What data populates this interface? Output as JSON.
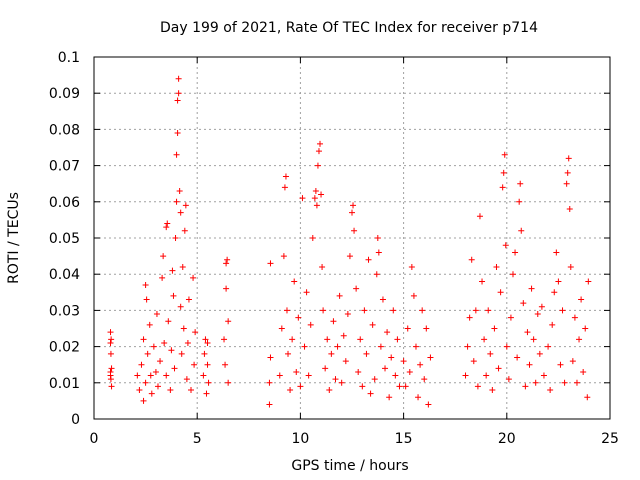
{
  "chart_data": {
    "type": "scatter",
    "title": "Day 199 of 2021, Rate Of TEC Index for receiver p714",
    "xlabel": "GPS time / hours",
    "ylabel": "ROTI / TECUs",
    "xlim": [
      0,
      25
    ],
    "ylim": [
      0,
      0.1
    ],
    "xticks": [
      0,
      5,
      10,
      15,
      20,
      25
    ],
    "xtick_labels": [
      "0",
      "5",
      "10",
      "15",
      "20",
      "25"
    ],
    "yticks": [
      0,
      0.01,
      0.02,
      0.03,
      0.04,
      0.05,
      0.06,
      0.07,
      0.08,
      0.09,
      0.1
    ],
    "ytick_labels": [
      "0",
      "0.01",
      "0.02",
      "0.03",
      "0.04",
      "0.05",
      "0.06",
      "0.07",
      "0.08",
      "0.09",
      "0.1"
    ],
    "grid": true,
    "marker": "+",
    "color": "#ff0000",
    "series": [
      {
        "points": [
          [
            0.8,
            0.012
          ],
          [
            0.8,
            0.013
          ],
          [
            0.82,
            0.011
          ],
          [
            0.85,
            0.014
          ],
          [
            0.8,
            0.021
          ],
          [
            0.83,
            0.022
          ],
          [
            0.8,
            0.024
          ],
          [
            0.85,
            0.009
          ],
          [
            0.82,
            0.018
          ],
          [
            2.1,
            0.012
          ],
          [
            2.2,
            0.008
          ],
          [
            2.3,
            0.015
          ],
          [
            2.4,
            0.005
          ],
          [
            2.4,
            0.022
          ],
          [
            2.5,
            0.01
          ],
          [
            2.5,
            0.037
          ],
          [
            2.55,
            0.033
          ],
          [
            2.6,
            0.018
          ],
          [
            2.7,
            0.026
          ],
          [
            2.75,
            0.012
          ],
          [
            2.8,
            0.007
          ],
          [
            2.9,
            0.02
          ],
          [
            3.0,
            0.013
          ],
          [
            3.05,
            0.029
          ],
          [
            3.1,
            0.009
          ],
          [
            3.2,
            0.016
          ],
          [
            3.3,
            0.039
          ],
          [
            3.35,
            0.045
          ],
          [
            3.4,
            0.021
          ],
          [
            3.5,
            0.012
          ],
          [
            3.5,
            0.053
          ],
          [
            3.55,
            0.054
          ],
          [
            3.6,
            0.027
          ],
          [
            3.7,
            0.008
          ],
          [
            3.75,
            0.019
          ],
          [
            3.8,
            0.041
          ],
          [
            3.85,
            0.034
          ],
          [
            3.9,
            0.014
          ],
          [
            3.95,
            0.05
          ],
          [
            4.0,
            0.06
          ],
          [
            4.0,
            0.073
          ],
          [
            4.05,
            0.079
          ],
          [
            4.05,
            0.088
          ],
          [
            4.1,
            0.09
          ],
          [
            4.1,
            0.094
          ],
          [
            4.15,
            0.063
          ],
          [
            4.2,
            0.057
          ],
          [
            4.2,
            0.031
          ],
          [
            4.25,
            0.018
          ],
          [
            4.3,
            0.042
          ],
          [
            4.35,
            0.025
          ],
          [
            4.4,
            0.052
          ],
          [
            4.45,
            0.059
          ],
          [
            4.5,
            0.011
          ],
          [
            4.55,
            0.021
          ],
          [
            4.6,
            0.033
          ],
          [
            4.7,
            0.008
          ],
          [
            4.8,
            0.039
          ],
          [
            4.85,
            0.015
          ],
          [
            4.9,
            0.024
          ],
          [
            5.3,
            0.012
          ],
          [
            5.35,
            0.018
          ],
          [
            5.4,
            0.022
          ],
          [
            5.45,
            0.007
          ],
          [
            5.5,
            0.015
          ],
          [
            5.5,
            0.021
          ],
          [
            5.55,
            0.01
          ],
          [
            6.3,
            0.022
          ],
          [
            6.35,
            0.015
          ],
          [
            6.4,
            0.043
          ],
          [
            6.45,
            0.044
          ],
          [
            6.4,
            0.036
          ],
          [
            6.5,
            0.01
          ],
          [
            6.5,
            0.027
          ],
          [
            8.5,
            0.004
          ],
          [
            8.5,
            0.01
          ],
          [
            8.55,
            0.017
          ],
          [
            8.55,
            0.043
          ],
          [
            9.0,
            0.012
          ],
          [
            9.1,
            0.025
          ],
          [
            9.2,
            0.045
          ],
          [
            9.25,
            0.064
          ],
          [
            9.3,
            0.067
          ],
          [
            9.35,
            0.03
          ],
          [
            9.4,
            0.018
          ],
          [
            9.5,
            0.008
          ],
          [
            9.6,
            0.022
          ],
          [
            9.7,
            0.038
          ],
          [
            9.8,
            0.013
          ],
          [
            9.9,
            0.028
          ],
          [
            10.0,
            0.009
          ],
          [
            10.1,
            0.061
          ],
          [
            10.2,
            0.02
          ],
          [
            10.3,
            0.035
          ],
          [
            10.4,
            0.012
          ],
          [
            10.5,
            0.026
          ],
          [
            10.6,
            0.05
          ],
          [
            10.7,
            0.061
          ],
          [
            10.75,
            0.063
          ],
          [
            10.8,
            0.059
          ],
          [
            10.85,
            0.07
          ],
          [
            10.9,
            0.074
          ],
          [
            10.95,
            0.076
          ],
          [
            11.0,
            0.062
          ],
          [
            11.05,
            0.042
          ],
          [
            11.1,
            0.03
          ],
          [
            11.2,
            0.014
          ],
          [
            11.3,
            0.022
          ],
          [
            11.4,
            0.008
          ],
          [
            11.5,
            0.018
          ],
          [
            11.6,
            0.027
          ],
          [
            11.7,
            0.011
          ],
          [
            11.8,
            0.02
          ],
          [
            11.9,
            0.034
          ],
          [
            12.0,
            0.01
          ],
          [
            12.1,
            0.023
          ],
          [
            12.2,
            0.016
          ],
          [
            12.3,
            0.029
          ],
          [
            12.4,
            0.045
          ],
          [
            12.5,
            0.057
          ],
          [
            12.55,
            0.059
          ],
          [
            12.6,
            0.052
          ],
          [
            12.7,
            0.036
          ],
          [
            12.8,
            0.013
          ],
          [
            12.9,
            0.022
          ],
          [
            13.0,
            0.009
          ],
          [
            13.1,
            0.03
          ],
          [
            13.2,
            0.018
          ],
          [
            13.3,
            0.044
          ],
          [
            13.4,
            0.007
          ],
          [
            13.5,
            0.026
          ],
          [
            13.6,
            0.011
          ],
          [
            13.7,
            0.04
          ],
          [
            13.75,
            0.05
          ],
          [
            13.8,
            0.046
          ],
          [
            13.9,
            0.02
          ],
          [
            14.0,
            0.033
          ],
          [
            14.1,
            0.014
          ],
          [
            14.2,
            0.024
          ],
          [
            14.3,
            0.006
          ],
          [
            14.4,
            0.017
          ],
          [
            14.5,
            0.03
          ],
          [
            14.6,
            0.012
          ],
          [
            14.7,
            0.022
          ],
          [
            14.8,
            0.009
          ],
          [
            15.0,
            0.016
          ],
          [
            15.1,
            0.009
          ],
          [
            15.2,
            0.025
          ],
          [
            15.3,
            0.013
          ],
          [
            15.4,
            0.042
          ],
          [
            15.5,
            0.034
          ],
          [
            15.6,
            0.02
          ],
          [
            15.7,
            0.006
          ],
          [
            15.8,
            0.015
          ],
          [
            15.9,
            0.03
          ],
          [
            16.0,
            0.011
          ],
          [
            16.1,
            0.025
          ],
          [
            16.2,
            0.004
          ],
          [
            16.3,
            0.017
          ],
          [
            18.0,
            0.012
          ],
          [
            18.1,
            0.02
          ],
          [
            18.2,
            0.028
          ],
          [
            18.3,
            0.044
          ],
          [
            18.4,
            0.016
          ],
          [
            18.5,
            0.03
          ],
          [
            18.6,
            0.009
          ],
          [
            18.7,
            0.056
          ],
          [
            18.8,
            0.038
          ],
          [
            18.9,
            0.022
          ],
          [
            19.0,
            0.012
          ],
          [
            19.1,
            0.03
          ],
          [
            19.2,
            0.018
          ],
          [
            19.3,
            0.008
          ],
          [
            19.4,
            0.025
          ],
          [
            19.5,
            0.042
          ],
          [
            19.6,
            0.014
          ],
          [
            19.7,
            0.035
          ],
          [
            19.8,
            0.064
          ],
          [
            19.85,
            0.068
          ],
          [
            19.9,
            0.073
          ],
          [
            19.95,
            0.048
          ],
          [
            20.0,
            0.02
          ],
          [
            20.1,
            0.011
          ],
          [
            20.2,
            0.028
          ],
          [
            20.3,
            0.04
          ],
          [
            20.4,
            0.046
          ],
          [
            20.5,
            0.017
          ],
          [
            20.6,
            0.06
          ],
          [
            20.65,
            0.065
          ],
          [
            20.7,
            0.052
          ],
          [
            20.8,
            0.032
          ],
          [
            20.9,
            0.009
          ],
          [
            21.0,
            0.024
          ],
          [
            21.1,
            0.015
          ],
          [
            21.2,
            0.036
          ],
          [
            21.3,
            0.022
          ],
          [
            21.4,
            0.01
          ],
          [
            21.5,
            0.029
          ],
          [
            21.6,
            0.018
          ],
          [
            21.7,
            0.031
          ],
          [
            21.8,
            0.012
          ],
          [
            22.0,
            0.02
          ],
          [
            22.1,
            0.008
          ],
          [
            22.2,
            0.026
          ],
          [
            22.3,
            0.035
          ],
          [
            22.4,
            0.046
          ],
          [
            22.5,
            0.038
          ],
          [
            22.6,
            0.015
          ],
          [
            22.7,
            0.03
          ],
          [
            22.8,
            0.01
          ],
          [
            22.9,
            0.065
          ],
          [
            22.95,
            0.068
          ],
          [
            23.0,
            0.072
          ],
          [
            23.05,
            0.058
          ],
          [
            23.1,
            0.042
          ],
          [
            23.2,
            0.016
          ],
          [
            23.3,
            0.028
          ],
          [
            23.4,
            0.01
          ],
          [
            23.5,
            0.022
          ],
          [
            23.6,
            0.033
          ],
          [
            23.7,
            0.013
          ],
          [
            23.8,
            0.025
          ],
          [
            23.9,
            0.006
          ],
          [
            23.95,
            0.038
          ]
        ]
      }
    ]
  }
}
